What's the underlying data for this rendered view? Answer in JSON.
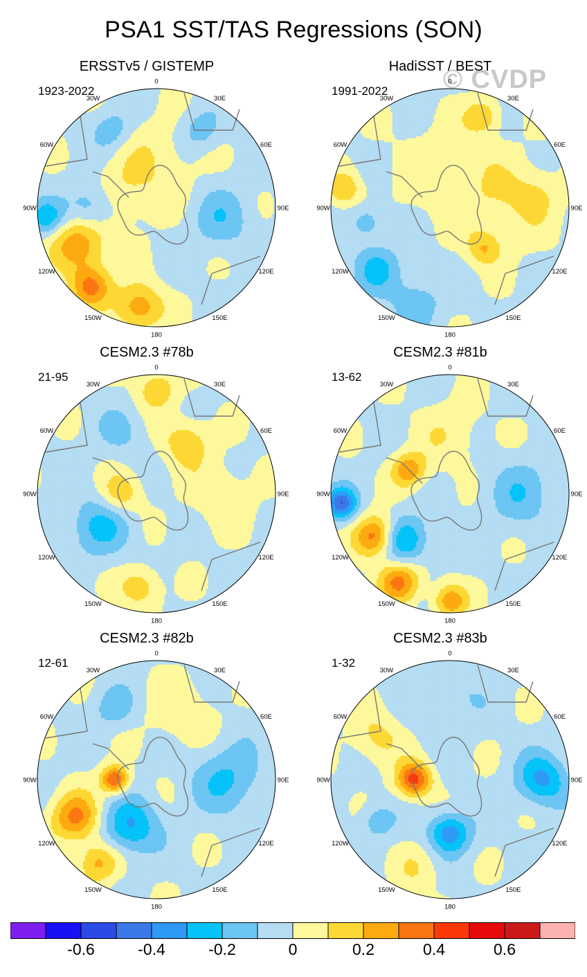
{
  "title": "PSA1 SST/TAS Regressions (SON)",
  "watermark": "© CVDP",
  "chart_data": {
    "type": "heatmap",
    "projection": "south polar stereographic",
    "panels": [
      {
        "title": "ERSSTv5 / GISTEMP",
        "period": "1923-2022",
        "blobs": [
          {
            "lon": 245,
            "r": 0.72,
            "rad": 0.16,
            "v": 0.3
          },
          {
            "lon": 220,
            "r": 0.86,
            "rad": 0.12,
            "v": 0.35
          },
          {
            "lon": 190,
            "r": 0.85,
            "rad": 0.14,
            "v": 0.3
          },
          {
            "lon": 270,
            "r": 0.55,
            "rad": 0.14,
            "v": -0.2
          },
          {
            "lon": 265,
            "r": 0.93,
            "rad": 0.1,
            "v": -0.25
          },
          {
            "lon": 100,
            "r": 0.55,
            "rad": 0.18,
            "v": -0.15
          },
          {
            "lon": 30,
            "r": 0.75,
            "rad": 0.12,
            "v": -0.15
          },
          {
            "lon": 330,
            "r": 0.75,
            "rad": 0.12,
            "v": -0.15
          },
          {
            "lon": 0,
            "r": 0.4,
            "rad": 0.25,
            "v": 0.1
          },
          {
            "lon": 290,
            "r": 0.3,
            "rad": 0.2,
            "v": 0.1
          }
        ]
      },
      {
        "title": "HadiSST / BEST",
        "period": "1991-2022",
        "blobs": [
          {
            "lon": 0,
            "r": 0.3,
            "rad": 0.3,
            "v": 0.1
          },
          {
            "lon": 90,
            "r": 0.5,
            "rad": 0.25,
            "v": 0.1
          },
          {
            "lon": 20,
            "r": 0.82,
            "rad": 0.1,
            "v": 0.2
          },
          {
            "lon": 280,
            "r": 0.9,
            "rad": 0.1,
            "v": 0.2
          },
          {
            "lon": 200,
            "r": 0.85,
            "rad": 0.15,
            "v": -0.15
          },
          {
            "lon": 230,
            "r": 0.8,
            "rad": 0.14,
            "v": -0.2
          },
          {
            "lon": 260,
            "r": 0.7,
            "rad": 0.1,
            "v": -0.15
          },
          {
            "lon": 140,
            "r": 0.45,
            "rad": 0.1,
            "v": 0.2
          },
          {
            "lon": 80,
            "r": 0.75,
            "rad": 0.14,
            "v": 0.1
          }
        ]
      },
      {
        "title": "CESM2.3 #78b",
        "period": "21-95",
        "blobs": [
          {
            "lon": 0,
            "r": 0.88,
            "rad": 0.12,
            "v": 0.2
          },
          {
            "lon": 30,
            "r": 0.5,
            "rad": 0.14,
            "v": 0.2
          },
          {
            "lon": 240,
            "r": 0.55,
            "rad": 0.18,
            "v": -0.2
          },
          {
            "lon": 190,
            "r": 0.8,
            "rad": 0.12,
            "v": 0.2
          },
          {
            "lon": 90,
            "r": 0.55,
            "rad": 0.2,
            "v": 0.1
          },
          {
            "lon": 270,
            "r": 0.3,
            "rad": 0.12,
            "v": 0.2
          },
          {
            "lon": 330,
            "r": 0.6,
            "rad": 0.15,
            "v": -0.1
          }
        ]
      },
      {
        "title": "CESM2.3 #81b",
        "period": "13-62",
        "blobs": [
          {
            "lon": 240,
            "r": 0.72,
            "rad": 0.12,
            "v": 0.4
          },
          {
            "lon": 210,
            "r": 0.85,
            "rad": 0.12,
            "v": 0.35
          },
          {
            "lon": 180,
            "r": 0.9,
            "rad": 0.1,
            "v": 0.3
          },
          {
            "lon": 225,
            "r": 0.55,
            "rad": 0.14,
            "v": -0.3
          },
          {
            "lon": 265,
            "r": 0.92,
            "rad": 0.09,
            "v": -0.45
          },
          {
            "lon": 90,
            "r": 0.6,
            "rad": 0.2,
            "v": -0.15
          },
          {
            "lon": 300,
            "r": 0.4,
            "rad": 0.1,
            "v": 0.3
          },
          {
            "lon": 0,
            "r": 0.5,
            "rad": 0.2,
            "v": 0.1
          }
        ]
      },
      {
        "title": "CESM2.3 #82b",
        "period": "12-61",
        "blobs": [
          {
            "lon": 245,
            "r": 0.75,
            "rad": 0.14,
            "v": 0.35
          },
          {
            "lon": 215,
            "r": 0.85,
            "rad": 0.12,
            "v": 0.25
          },
          {
            "lon": 210,
            "r": 0.45,
            "rad": 0.16,
            "v": -0.3
          },
          {
            "lon": 270,
            "r": 0.35,
            "rad": 0.08,
            "v": 0.45
          },
          {
            "lon": 90,
            "r": 0.6,
            "rad": 0.2,
            "v": -0.2
          },
          {
            "lon": 330,
            "r": 0.7,
            "rad": 0.12,
            "v": -0.15
          },
          {
            "lon": 20,
            "r": 0.6,
            "rad": 0.2,
            "v": 0.1
          }
        ]
      },
      {
        "title": "CESM2.3 #83b",
        "period": "1-32",
        "blobs": [
          {
            "lon": 90,
            "r": 0.78,
            "rad": 0.15,
            "v": -0.3
          },
          {
            "lon": 270,
            "r": 0.3,
            "rad": 0.1,
            "v": 0.45
          },
          {
            "lon": 180,
            "r": 0.45,
            "rad": 0.12,
            "v": -0.35
          },
          {
            "lon": 0,
            "r": 0.7,
            "rad": 0.2,
            "v": -0.1
          },
          {
            "lon": 200,
            "r": 0.8,
            "rad": 0.14,
            "v": 0.1
          },
          {
            "lon": 300,
            "r": 0.7,
            "rad": 0.15,
            "v": 0.15
          },
          {
            "lon": 240,
            "r": 0.7,
            "rad": 0.1,
            "v": -0.15
          }
        ]
      }
    ],
    "lon_labels": [
      "0",
      "30E",
      "60E",
      "90E",
      "120E",
      "150E",
      "180",
      "150W",
      "120W",
      "90W",
      "60W",
      "30W"
    ],
    "colorbar": {
      "levels": [
        -0.7,
        -0.6,
        -0.5,
        -0.4,
        -0.3,
        -0.2,
        -0.1,
        0,
        0.1,
        0.2,
        0.3,
        0.4,
        0.5,
        0.6,
        0.7
      ],
      "colors": [
        "#7e1ff0",
        "#1a10f5",
        "#2c4ae6",
        "#3b78e8",
        "#2e9af6",
        "#05c3f9",
        "#6cc5f2",
        "#b4dcf2",
        "#fdf89c",
        "#fdd835",
        "#fdaa10",
        "#fb7612",
        "#fd3808",
        "#e70a0a",
        "#cc1a1a",
        "#fdb2b2"
      ],
      "tick_labels": [
        "-0.6",
        "-0.4",
        "-0.2",
        "0",
        "0.2",
        "0.4",
        "0.6"
      ]
    }
  }
}
